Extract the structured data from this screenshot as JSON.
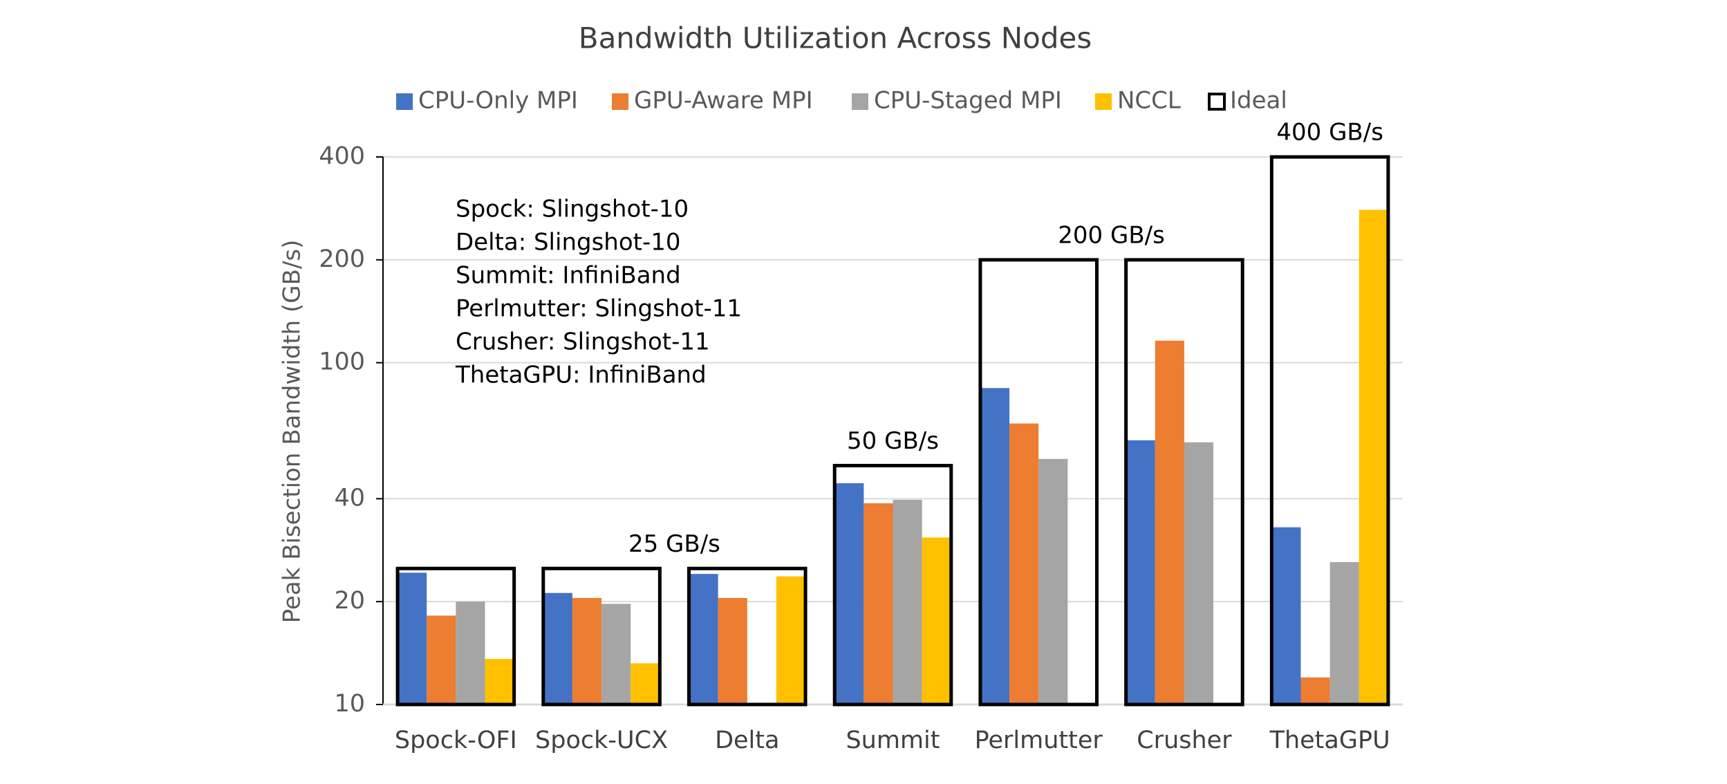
{
  "chart_data": {
    "type": "bar",
    "title": "Bandwidth Utilization Across Nodes",
    "y_label": "Peak Bisection Bandwidth (GB/s)",
    "categories": [
      "Spock-OFI",
      "Spock-UCX",
      "Delta",
      "Summit",
      "Perlmutter",
      "Crusher",
      "ThetaGPU"
    ],
    "series": [
      {
        "name": "CPU-Only MPI",
        "color": "#4472c4",
        "values": [
          24.3,
          21.2,
          24.1,
          44.4,
          84.3,
          59.3,
          33
        ]
      },
      {
        "name": "GPU-Aware MPI",
        "color": "#ed7d31",
        "values": [
          18.2,
          20.5,
          20.5,
          38.8,
          66.4,
          116,
          12
        ]
      },
      {
        "name": "CPU-Staged MPI",
        "color": "#a5a5a5",
        "values": [
          20,
          19.7,
          null,
          39.7,
          52.3,
          58.5,
          26.1
        ]
      },
      {
        "name": "NCCL",
        "color": "#ffc000",
        "values": [
          13.6,
          13.2,
          23.7,
          30.8,
          null,
          null,
          280
        ]
      },
      {
        "name": "Ideal",
        "color": "#000000",
        "style": "outline",
        "values": [
          25,
          25,
          25,
          50,
          200,
          200,
          400
        ],
        "value_labels": [
          null,
          "25 GB/s",
          null,
          "50 GB/s",
          "200 GB/s",
          null,
          "400 GB/s"
        ]
      }
    ],
    "annotation": [
      "Spock: Slingshot-10",
      "Delta: Slingshot-10",
      "Summit: InfiniBand",
      "Perlmutter: Slingshot-11",
      "Crusher: Slingshot-11",
      "ThetaGPU: InfiniBand"
    ],
    "ylim": [
      10,
      400
    ],
    "yticks": [
      10,
      20,
      40,
      100,
      200,
      400
    ],
    "y_scale": "log",
    "grid": true,
    "legend": "top"
  }
}
